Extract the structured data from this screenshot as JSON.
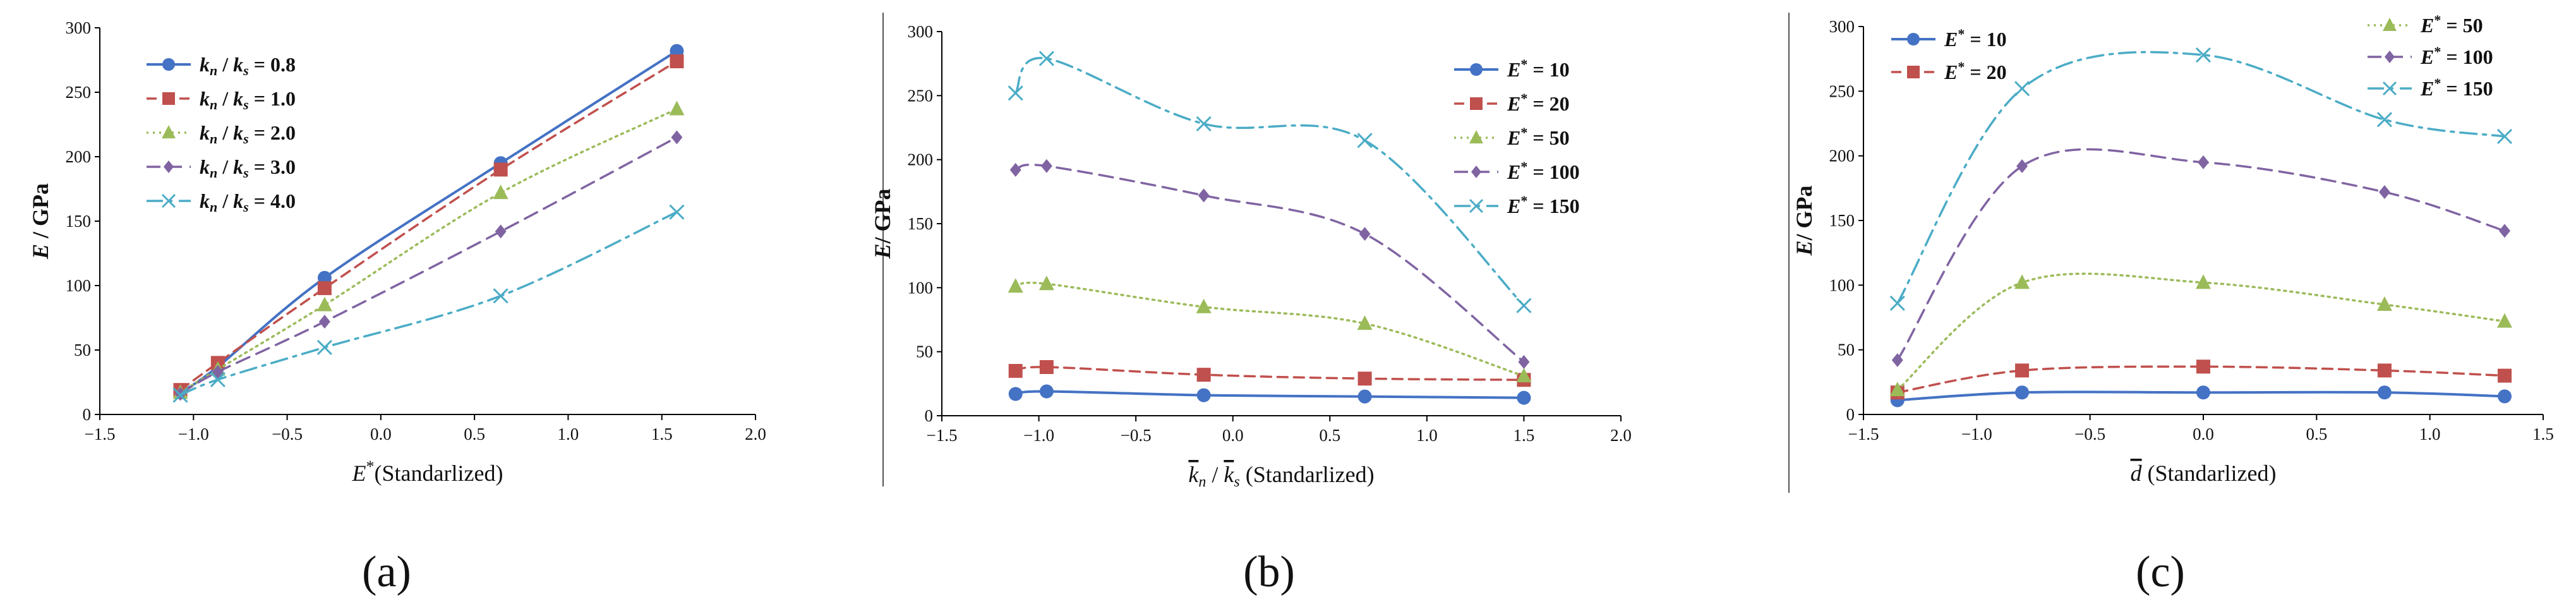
{
  "figure": {
    "colors": {
      "blue": "#4472C4",
      "red": "#C0504D",
      "green": "#9BBB59",
      "purple": "#8064A2",
      "cyan": "#4BACC6",
      "axis": "#000000",
      "divider": "#555555"
    }
  },
  "chart_data": [
    {
      "id": "a",
      "type": "line",
      "panel_label": "(a)",
      "ylabel": "E / GPa",
      "xlabel": "E*(Standarlized)",
      "xlim": [
        -1.5,
        2.0
      ],
      "ylim": [
        0,
        300
      ],
      "xticks": [
        -1.5,
        -1.0,
        -0.5,
        0.0,
        0.5,
        1.0,
        1.5,
        2.0
      ],
      "yticks": [
        0,
        50,
        100,
        150,
        200,
        250,
        300
      ],
      "xtick_labels": [
        "−1.5",
        "−1.0",
        "−0.5",
        "0.0",
        "0.5",
        "1.0",
        "1.5",
        "2.0"
      ],
      "ytick_labels": [
        "0",
        "50",
        "100",
        "150",
        "200",
        "250",
        "300"
      ],
      "legend_position": "top-left",
      "x": [
        -1.07,
        -0.87,
        -0.3,
        0.64,
        1.58
      ],
      "series": [
        {
          "name": "kn / ks = 0.8",
          "color": "blue",
          "marker": "circle",
          "dash": "solid",
          "values": [
            17,
            37,
            106,
            195,
            282
          ]
        },
        {
          "name": "kn / ks = 1.0",
          "color": "red",
          "marker": "square",
          "dash": "dash",
          "values": [
            19,
            40,
            98,
            190,
            274
          ]
        },
        {
          "name": "kn / ks = 2.0",
          "color": "green",
          "marker": "triangle",
          "dash": "dot",
          "values": [
            17,
            35,
            85,
            172,
            237
          ]
        },
        {
          "name": "kn / ks = 3.0",
          "color": "purple",
          "marker": "diamond",
          "dash": "longdash",
          "values": [
            16,
            33,
            72,
            142,
            215
          ]
        },
        {
          "name": "kn / ks = 4.0",
          "color": "cyan",
          "marker": "x",
          "dash": "dashdot",
          "values": [
            15,
            27,
            52,
            92,
            157
          ]
        }
      ]
    },
    {
      "id": "b",
      "type": "line",
      "panel_label": "(b)",
      "ylabel": "E/ GPa",
      "xlabel": "kn / ks (Standarlized)",
      "xlim": [
        -1.5,
        2.0
      ],
      "ylim": [
        0,
        300
      ],
      "xticks": [
        -1.5,
        -1.0,
        -0.5,
        0.0,
        0.5,
        1.0,
        1.5,
        2.0
      ],
      "yticks": [
        0,
        50,
        100,
        150,
        200,
        250,
        300
      ],
      "xtick_labels": [
        "−1.5",
        "−1.0",
        "−0.5",
        "0.0",
        "0.5",
        "1.0",
        "1.5",
        "2.0"
      ],
      "ytick_labels": [
        "0",
        "50",
        "100",
        "150",
        "200",
        "250",
        "300"
      ],
      "legend_position": "top-right",
      "x": [
        -1.12,
        -0.96,
        -0.15,
        0.68,
        1.5
      ],
      "series": [
        {
          "name": "E* = 10",
          "color": "blue",
          "marker": "circle",
          "dash": "solid",
          "values": [
            17,
            19,
            16,
            15,
            14
          ]
        },
        {
          "name": "E* = 20",
          "color": "red",
          "marker": "square",
          "dash": "dash",
          "values": [
            35,
            38,
            32,
            29,
            28
          ]
        },
        {
          "name": "E* = 50",
          "color": "green",
          "marker": "triangle",
          "dash": "dot",
          "values": [
            101,
            103,
            85,
            72,
            31
          ]
        },
        {
          "name": "E* = 100",
          "color": "purple",
          "marker": "diamond",
          "dash": "longdash",
          "values": [
            192,
            195,
            172,
            142,
            42
          ]
        },
        {
          "name": "E* = 150",
          "color": "cyan",
          "marker": "x",
          "dash": "dashdot",
          "values": [
            252,
            279,
            228,
            215,
            86
          ]
        }
      ]
    },
    {
      "id": "c",
      "type": "line",
      "panel_label": "(c)",
      "ylabel": "E/ GPa",
      "xlabel": "d (Standarlized)",
      "xlim": [
        -1.5,
        1.5
      ],
      "ylim": [
        0,
        300
      ],
      "xticks": [
        -1.5,
        -1.0,
        -0.5,
        0.0,
        0.5,
        1.0,
        1.5
      ],
      "yticks": [
        0,
        50,
        100,
        150,
        200,
        250,
        300
      ],
      "xtick_labels": [
        "−1.5",
        "−1.0",
        "−0.5",
        "0.0",
        "0.5",
        "1.0",
        "1.5"
      ],
      "ytick_labels": [
        "0",
        "50",
        "100",
        "150",
        "200",
        "250",
        "300"
      ],
      "legend_position": "top (split left and right)",
      "x": [
        -1.35,
        -0.8,
        0.0,
        0.8,
        1.33
      ],
      "series": [
        {
          "name": "E* = 10",
          "color": "blue",
          "marker": "circle",
          "dash": "solid",
          "values": [
            11,
            17,
            17,
            17,
            14
          ]
        },
        {
          "name": "E* = 20",
          "color": "red",
          "marker": "square",
          "dash": "dash",
          "values": [
            17,
            34,
            37,
            34,
            30
          ]
        },
        {
          "name": "E* = 50",
          "color": "green",
          "marker": "triangle",
          "dash": "dot",
          "values": [
            19,
            102,
            102,
            85,
            72
          ]
        },
        {
          "name": "E* = 100",
          "color": "purple",
          "marker": "diamond",
          "dash": "longdash",
          "values": [
            42,
            192,
            195,
            172,
            142
          ]
        },
        {
          "name": "E* = 150",
          "color": "cyan",
          "marker": "x",
          "dash": "dashdot",
          "values": [
            86,
            252,
            278,
            228,
            215
          ]
        }
      ]
    }
  ]
}
